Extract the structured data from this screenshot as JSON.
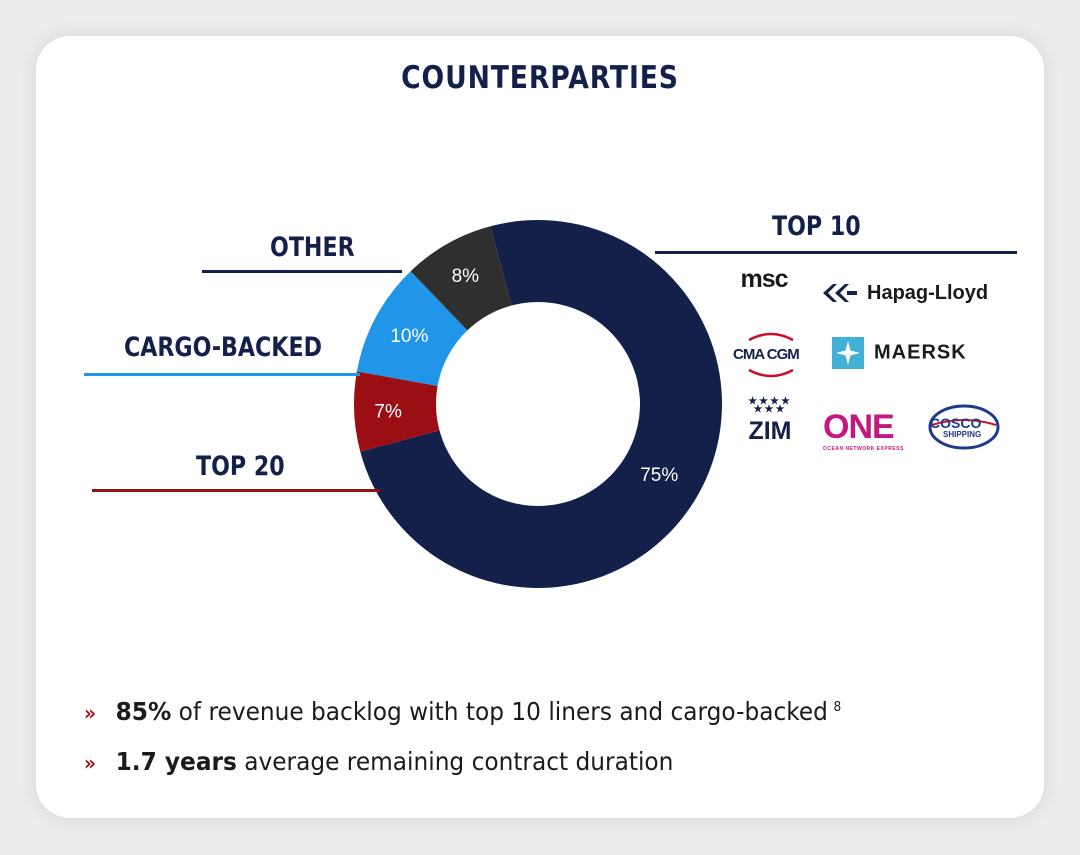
{
  "title": "COUNTERPARTIES",
  "chart_data": {
    "type": "pie",
    "donut": true,
    "categories": [
      "TOP 10",
      "TOP 20",
      "CARGO-BACKED",
      "OTHER"
    ],
    "values": [
      75,
      7,
      10,
      8
    ],
    "labels": [
      "75%",
      "7%",
      "10%",
      "8%"
    ],
    "colors": [
      "#13214a",
      "#9b0f14",
      "#2196e8",
      "#2f2f2f"
    ]
  },
  "liner_logos": [
    "msc",
    "Hapag-Lloyd",
    "CMA CGM",
    "MAERSK",
    "ZIM",
    "ONE",
    "COSCO"
  ],
  "logo_small_text": {
    "one": "OCEAN NETWORK EXPRESS",
    "cosco": "SHIPPING"
  },
  "bullets": [
    {
      "bold": "85%",
      "text": " of revenue backlog with top 10 liners and cargo-backed",
      "sup": "8"
    },
    {
      "bold": "1.7 years",
      "text": " average remaining contract duration",
      "sup": ""
    }
  ],
  "bullet_marker": "»"
}
